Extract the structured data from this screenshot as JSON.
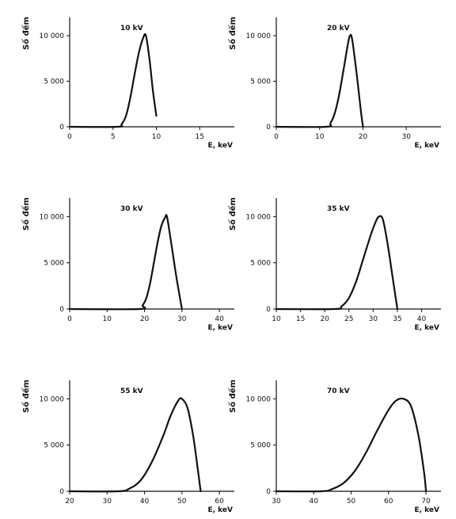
{
  "chart_data": [
    {
      "type": "line",
      "title": "10 kV",
      "ylabel": "Số đếm",
      "xlabel": "E, keV",
      "xlim": [
        0,
        19
      ],
      "ylim": [
        0,
        12000
      ],
      "xticks": [
        0,
        5,
        10,
        15
      ],
      "xtick_labels": [
        "0",
        "5",
        "10",
        "15"
      ],
      "yticks": [
        0,
        5000,
        10000
      ],
      "ytick_labels": [
        "0",
        "5 000",
        "10 000"
      ],
      "series": [
        {
          "x": [
            0,
            5.5,
            6.0,
            6.5,
            7.0,
            7.5,
            8.0,
            8.5,
            8.8,
            9.2,
            9.6,
            10.0
          ],
          "y": [
            0,
            0,
            300,
            1200,
            3200,
            5800,
            8200,
            9800,
            10000,
            7500,
            4000,
            1200
          ]
        }
      ]
    },
    {
      "type": "line",
      "title": "20 kV",
      "ylabel": "Số đếm",
      "xlabel": "E, keV",
      "xlim": [
        0,
        38
      ],
      "ylim": [
        0,
        12000
      ],
      "xticks": [
        0,
        10,
        20,
        30
      ],
      "xtick_labels": [
        "0",
        "10",
        "20",
        "30"
      ],
      "yticks": [
        0,
        5000,
        10000
      ],
      "ytick_labels": [
        "0",
        "5 000",
        "10 000"
      ],
      "series": [
        {
          "x": [
            0,
            11.5,
            12.5,
            13.5,
            14.5,
            15.5,
            16.5,
            17.0,
            17.5,
            18.5,
            19.5,
            20.0
          ],
          "y": [
            0,
            0,
            400,
            1500,
            3500,
            6200,
            9000,
            10000,
            9600,
            6000,
            1800,
            0
          ]
        }
      ]
    },
    {
      "type": "line",
      "title": "30 kV",
      "ylabel": "Số đếm",
      "xlabel": "E, keV",
      "xlim": [
        0,
        44
      ],
      "ylim": [
        0,
        12000
      ],
      "xticks": [
        0,
        10,
        20,
        30,
        40
      ],
      "xtick_labels": [
        "0",
        "10",
        "20",
        "30",
        "40"
      ],
      "yticks": [
        0,
        5000,
        10000
      ],
      "ytick_labels": [
        "0",
        "5 000",
        "10 000"
      ],
      "series": [
        {
          "x": [
            0,
            18.5,
            19.5,
            20.5,
            21.5,
            22.5,
            23.5,
            24.5,
            25.5,
            26.0,
            27.0,
            28.5,
            30.0
          ],
          "y": [
            0,
            0,
            400,
            1200,
            2800,
            5000,
            7200,
            9000,
            9900,
            10000,
            7500,
            3500,
            0
          ]
        }
      ]
    },
    {
      "type": "line",
      "title": "35 kV",
      "ylabel": "Số đếm",
      "xlabel": "E, keV",
      "xlim": [
        10,
        44
      ],
      "ylim": [
        0,
        12000
      ],
      "xticks": [
        10,
        15,
        20,
        25,
        30,
        35,
        40
      ],
      "xtick_labels": [
        "10",
        "15",
        "20",
        "25",
        "30",
        "35",
        "40"
      ],
      "yticks": [
        0,
        5000,
        10000
      ],
      "ytick_labels": [
        "0",
        "5 000",
        "10 000"
      ],
      "series": [
        {
          "x": [
            10,
            22.0,
            23.5,
            25.0,
            26.5,
            28.0,
            29.5,
            30.5,
            31.2,
            32.0,
            33.0,
            34.0,
            35.0
          ],
          "y": [
            0,
            0,
            300,
            1200,
            3000,
            5500,
            8000,
            9400,
            10000,
            9700,
            7000,
            3500,
            0
          ]
        }
      ]
    },
    {
      "type": "line",
      "title": "55 kV",
      "ylabel": "Số đếm",
      "xlabel": "E, keV",
      "xlim": [
        20,
        64
      ],
      "ylim": [
        0,
        12000
      ],
      "xticks": [
        20,
        30,
        40,
        50,
        60
      ],
      "xtick_labels": [
        "20",
        "30",
        "40",
        "50",
        "60"
      ],
      "yticks": [
        0,
        5000,
        10000
      ],
      "ytick_labels": [
        "0",
        "5 000",
        "10 000"
      ],
      "series": [
        {
          "x": [
            20,
            33.0,
            36.0,
            39.0,
            42.0,
            45.0,
            47.0,
            49.0,
            50.0,
            51.5,
            53.0,
            54.2,
            55.0
          ],
          "y": [
            0,
            0,
            300,
            1200,
            3200,
            6000,
            8200,
            9800,
            10000,
            9000,
            6000,
            2500,
            0
          ]
        }
      ]
    },
    {
      "type": "line",
      "title": "70 kV",
      "ylabel": "Số đếm",
      "xlabel": "E, keV",
      "xlim": [
        30,
        74
      ],
      "ylim": [
        0,
        12000
      ],
      "xticks": [
        30,
        40,
        50,
        60,
        70
      ],
      "xtick_labels": [
        "30",
        "40",
        "50",
        "60",
        "70"
      ],
      "yticks": [
        0,
        5000,
        10000
      ],
      "ytick_labels": [
        "0",
        "5 000",
        "10 000"
      ],
      "series": [
        {
          "x": [
            30,
            42.0,
            45.0,
            48.0,
            51.0,
            54.0,
            57.0,
            60.0,
            62.0,
            64.0,
            66.0,
            68.0,
            69.5,
            70.0
          ],
          "y": [
            0,
            0,
            250,
            900,
            2200,
            4200,
            6600,
            8800,
            9800,
            10000,
            9200,
            6000,
            2000,
            0
          ]
        }
      ]
    }
  ]
}
